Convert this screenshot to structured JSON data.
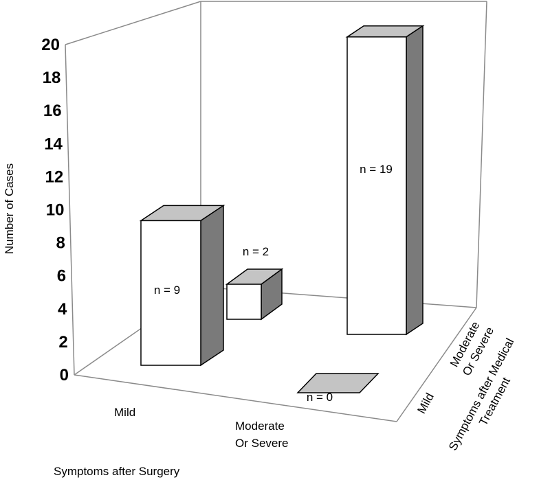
{
  "chart_data": {
    "type": "bar",
    "subtype": "3d-grouped-bar",
    "ylabel": "Number of Cases",
    "xlabel": "Symptoms after Surgery",
    "zlabel_lines": [
      "Symptoms after Medical",
      "Treatment"
    ],
    "ylim": [
      0,
      20
    ],
    "yticks": [
      0,
      2,
      4,
      6,
      8,
      10,
      12,
      14,
      16,
      18,
      20
    ],
    "x_categories": [
      {
        "lines": [
          "Mild"
        ]
      },
      {
        "lines": [
          "Moderate",
          "Or Severe"
        ]
      }
    ],
    "z_categories": [
      {
        "lines": [
          "Mild"
        ]
      },
      {
        "lines": [
          "Moderate",
          "Or Severe"
        ]
      }
    ],
    "bars": [
      {
        "x": "Mild",
        "z": "Mild",
        "value": 9,
        "label": "n = 9"
      },
      {
        "x": "Mild",
        "z": "Moderate Or Severe",
        "value": 2,
        "label": "n = 2"
      },
      {
        "x": "Moderate Or Severe",
        "z": "Mild",
        "value": 0,
        "label": "n = 0"
      },
      {
        "x": "Moderate Or Severe",
        "z": "Moderate Or Severe",
        "value": 19,
        "label": "n = 19"
      }
    ],
    "colors": {
      "front": "#ffffff",
      "top": "#c4c4c4",
      "side": "#7a7a7a",
      "frame": "#8a8a8a"
    },
    "grid": false
  }
}
